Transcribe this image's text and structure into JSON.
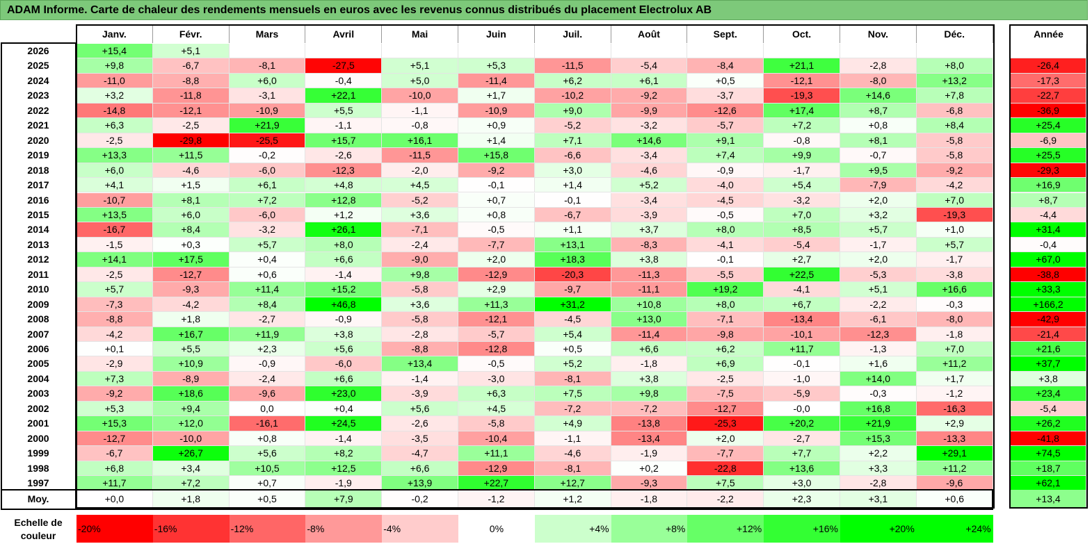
{
  "title": "ADAM Informe. Carte de chaleur des rendements mensuels en euros avec les revenus connus distribués du placement Electrolux AB",
  "chart_data": {
    "type": "heatmap",
    "months": [
      "Janv.",
      "Févr.",
      "Mars",
      "Avril",
      "Mai",
      "Juin",
      "Juil.",
      "Août",
      "Sept.",
      "Oct.",
      "Nov.",
      "Déc."
    ],
    "year_column_label": "Année",
    "rows": [
      {
        "year": "2026",
        "values": [
          "+15,4",
          "+5,1",
          "",
          "",
          "",
          "",
          "",
          "",
          "",
          "",
          "",
          ""
        ],
        "annual": ""
      },
      {
        "year": "2025",
        "values": [
          "+9,8",
          "-6,7",
          "-8,1",
          "-27,5",
          "+5,1",
          "+5,3",
          "-11,5",
          "-5,4",
          "-8,4",
          "+21,1",
          "-2,8",
          "+8,0"
        ],
        "annual": "-26,4"
      },
      {
        "year": "2024",
        "values": [
          "-11,0",
          "-8,8",
          "+6,0",
          "-0,4",
          "+5,0",
          "-11,4",
          "+6,2",
          "+6,1",
          "+0,5",
          "-12,1",
          "-8,0",
          "+13,2"
        ],
        "annual": "-17,3"
      },
      {
        "year": "2023",
        "values": [
          "+3,2",
          "-11,8",
          "-3,1",
          "+22,1",
          "-10,0",
          "+1,7",
          "-10,2",
          "-9,2",
          "-3,7",
          "-19,3",
          "+14,6",
          "+7,8"
        ],
        "annual": "-22,7"
      },
      {
        "year": "2022",
        "values": [
          "-14,8",
          "-12,1",
          "-10,9",
          "+5,5",
          "-1,1",
          "-10,9",
          "+9,0",
          "-9,9",
          "-12,6",
          "+17,4",
          "+8,7",
          "-6,8"
        ],
        "annual": "-36,9"
      },
      {
        "year": "2021",
        "values": [
          "+6,3",
          "-2,5",
          "+21,9",
          "-1,1",
          "-0,8",
          "+0,9",
          "-5,2",
          "-3,2",
          "-5,7",
          "+7,2",
          "+0,8",
          "+8,4"
        ],
        "annual": "+25,4"
      },
      {
        "year": "2020",
        "values": [
          "-2,5",
          "-29,8",
          "-25,5",
          "+15,7",
          "+16,1",
          "+1,4",
          "+7,1",
          "+14,6",
          "+9,1",
          "-0,8",
          "+8,1",
          "-5,8"
        ],
        "annual": "-6,9"
      },
      {
        "year": "2019",
        "values": [
          "+13,3",
          "+11,5",
          "-0,2",
          "-2,6",
          "-11,5",
          "+15,8",
          "-6,6",
          "-3,4",
          "+7,4",
          "+9,9",
          "-0,7",
          "-5,8"
        ],
        "annual": "+25,5"
      },
      {
        "year": "2018",
        "values": [
          "+6,0",
          "-4,6",
          "-6,0",
          "-12,3",
          "-2,0",
          "-9,2",
          "+3,0",
          "-4,6",
          "-0,9",
          "-1,7",
          "+9,5",
          "-9,2"
        ],
        "annual": "-29,3"
      },
      {
        "year": "2017",
        "values": [
          "+4,1",
          "+1,5",
          "+6,1",
          "+4,8",
          "+4,5",
          "-0,1",
          "+1,4",
          "+5,2",
          "-4,0",
          "+5,4",
          "-7,9",
          "-4,2"
        ],
        "annual": "+16,9"
      },
      {
        "year": "2016",
        "values": [
          "-10,7",
          "+8,1",
          "+7,2",
          "+12,8",
          "-5,2",
          "+0,7",
          "-0,1",
          "-3,4",
          "-4,5",
          "-3,2",
          "+2,0",
          "+7,0"
        ],
        "annual": "+8,7"
      },
      {
        "year": "2015",
        "values": [
          "+13,5",
          "+6,0",
          "-6,0",
          "+1,2",
          "+3,6",
          "+0,8",
          "-6,7",
          "-3,9",
          "-0,5",
          "+7,0",
          "+3,2",
          "-19,3"
        ],
        "annual": "-4,4"
      },
      {
        "year": "2014",
        "values": [
          "-16,7",
          "+8,4",
          "-3,2",
          "+26,1",
          "-7,1",
          "-0,5",
          "+1,1",
          "+3,7",
          "+8,0",
          "+8,5",
          "+5,7",
          "+1,0"
        ],
        "annual": "+31,4"
      },
      {
        "year": "2013",
        "values": [
          "-1,5",
          "+0,3",
          "+5,7",
          "+8,0",
          "-2,4",
          "-7,7",
          "+13,1",
          "-8,3",
          "-4,1",
          "-5,4",
          "-1,7",
          "+5,7"
        ],
        "annual": "-0,4"
      },
      {
        "year": "2012",
        "values": [
          "+14,1",
          "+17,5",
          "+0,4",
          "+6,6",
          "-9,0",
          "+2,0",
          "+18,3",
          "+3,8",
          "-0,1",
          "+2,7",
          "+2,0",
          "-1,7"
        ],
        "annual": "+67,0"
      },
      {
        "year": "2011",
        "values": [
          "-2,5",
          "-12,7",
          "+0,6",
          "-1,4",
          "+9,8",
          "-12,9",
          "-20,3",
          "-11,3",
          "-5,5",
          "+22,5",
          "-5,3",
          "-3,8"
        ],
        "annual": "-38,8"
      },
      {
        "year": "2010",
        "values": [
          "+5,7",
          "-9,3",
          "+11,4",
          "+15,2",
          "-5,8",
          "+2,9",
          "-9,7",
          "-11,1",
          "+19,2",
          "-4,1",
          "+5,1",
          "+16,6"
        ],
        "annual": "+33,3"
      },
      {
        "year": "2009",
        "values": [
          "-7,3",
          "-4,2",
          "+8,4",
          "+46,8",
          "+3,6",
          "+11,3",
          "+31,2",
          "+10,8",
          "+8,0",
          "+6,7",
          "-2,2",
          "-0,3"
        ],
        "annual": "+166,2"
      },
      {
        "year": "2008",
        "values": [
          "-8,8",
          "+1,8",
          "-2,7",
          "-0,9",
          "-5,8",
          "-12,1",
          "-4,5",
          "+13,0",
          "-7,1",
          "-13,4",
          "-6,1",
          "-8,0"
        ],
        "annual": "-42,9"
      },
      {
        "year": "2007",
        "values": [
          "-4,2",
          "+16,7",
          "+11,9",
          "+3,8",
          "-2,8",
          "-5,7",
          "+5,4",
          "-11,4",
          "-9,8",
          "-10,1",
          "-12,3",
          "-1,8"
        ],
        "annual": "-21,4"
      },
      {
        "year": "2006",
        "values": [
          "+0,1",
          "+5,5",
          "+2,3",
          "+5,6",
          "-8,8",
          "-12,8",
          "+0,5",
          "+6,6",
          "+6,2",
          "+11,7",
          "-1,3",
          "+7,0"
        ],
        "annual": "+21,6"
      },
      {
        "year": "2005",
        "values": [
          "-2,9",
          "+10,9",
          "-0,9",
          "-6,0",
          "+13,4",
          "-0,5",
          "+5,2",
          "-1,8",
          "+6,9",
          "-0,1",
          "+1,6",
          "+11,2"
        ],
        "annual": "+37,7"
      },
      {
        "year": "2004",
        "values": [
          "+7,3",
          "-8,9",
          "-2,4",
          "+6,6",
          "-1,4",
          "-3,0",
          "-8,1",
          "+3,8",
          "-2,5",
          "-1,0",
          "+14,0",
          "+1,7"
        ],
        "annual": "+3,8"
      },
      {
        "year": "2003",
        "values": [
          "-9,2",
          "+18,6",
          "-9,6",
          "+23,0",
          "-3,9",
          "+6,3",
          "+7,5",
          "+9,8",
          "-7,5",
          "-5,9",
          "-0,3",
          "-1,2"
        ],
        "annual": "+23,4"
      },
      {
        "year": "2002",
        "values": [
          "+5,3",
          "+9,4",
          "0,0",
          "+0,4",
          "+5,6",
          "+4,5",
          "-7,2",
          "-7,2",
          "-12,7",
          "-0,0",
          "+16,8",
          "-16,3"
        ],
        "annual": "-5,4"
      },
      {
        "year": "2001",
        "values": [
          "+15,3",
          "+12,0",
          "-16,1",
          "+24,5",
          "-2,6",
          "-5,8",
          "+4,9",
          "-13,8",
          "-25,3",
          "+20,2",
          "+21,9",
          "+2,9"
        ],
        "annual": "+26,2"
      },
      {
        "year": "2000",
        "values": [
          "-12,7",
          "-10,0",
          "+0,8",
          "-1,4",
          "-3,5",
          "-10,4",
          "-1,1",
          "-13,4",
          "+2,0",
          "-2,7",
          "+15,3",
          "-13,3"
        ],
        "annual": "-41,8"
      },
      {
        "year": "1999",
        "values": [
          "-6,7",
          "+26,7",
          "+5,6",
          "+8,2",
          "-4,7",
          "+11,1",
          "-4,6",
          "-1,9",
          "-7,7",
          "+7,7",
          "+2,2",
          "+29,1"
        ],
        "annual": "+74,5"
      },
      {
        "year": "1998",
        "values": [
          "+6,8",
          "+3,4",
          "+10,5",
          "+12,5",
          "+6,6",
          "-12,9",
          "-8,1",
          "+0,2",
          "-22,8",
          "+13,6",
          "+3,3",
          "+11,2"
        ],
        "annual": "+18,7"
      },
      {
        "year": "1997",
        "values": [
          "+11,7",
          "+7,2",
          "+0,7",
          "-1,9",
          "+13,9",
          "+22,7",
          "+12,7",
          "-9,3",
          "+7,5",
          "+3,0",
          "-2,8",
          "-9,6"
        ],
        "annual": "+62,1"
      }
    ],
    "average": {
      "label": "Moy.",
      "values": [
        "+0,0",
        "+1,8",
        "+0,5",
        "+7,9",
        "-0,2",
        "-1,2",
        "+1,2",
        "-1,8",
        "-2,2",
        "+2,3",
        "+3,1",
        "+0,6"
      ],
      "annual": "+13,4"
    },
    "scale": {
      "label": "Echelle de couleur",
      "steps": [
        "-20%",
        "-16%",
        "-12%",
        "-8%",
        "-4%",
        "0%",
        "+4%",
        "+8%",
        "+12%",
        "+16%",
        "+20%",
        "+24%"
      ]
    },
    "colors": {
      "negative_max": "#ff0000",
      "neutral": "#ffffff",
      "positive_max": "#00ff00",
      "title_bg": "#7dc97a"
    }
  }
}
